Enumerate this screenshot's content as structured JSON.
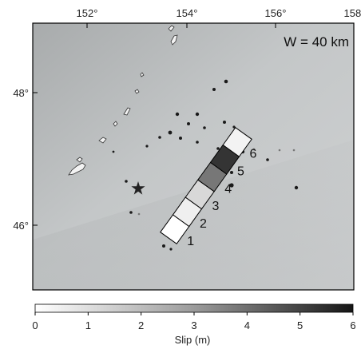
{
  "map": {
    "lon_ticks": [
      "152°",
      "154°",
      "156°",
      "158°"
    ],
    "lat_ticks": [
      "48°",
      "46°"
    ],
    "width_label": "W = 40 km"
  },
  "segments": [
    {
      "label": "1",
      "slip_m": 0.0
    },
    {
      "label": "2",
      "slip_m": 0.4
    },
    {
      "label": "3",
      "slip_m": 1.0
    },
    {
      "label": "4",
      "slip_m": 3.5
    },
    {
      "label": "5",
      "slip_m": 5.2
    },
    {
      "label": "6",
      "slip_m": 0.3
    }
  ],
  "colorbar": {
    "ticks": [
      "0",
      "1",
      "2",
      "3",
      "4",
      "5",
      "6"
    ],
    "label": "Slip (m)",
    "min": 0,
    "max": 6
  },
  "colors": {
    "ocean": "#c3c6c7",
    "land": "#f3f3f3",
    "slip_low": "#ffffff",
    "slip_high": "#151515"
  }
}
